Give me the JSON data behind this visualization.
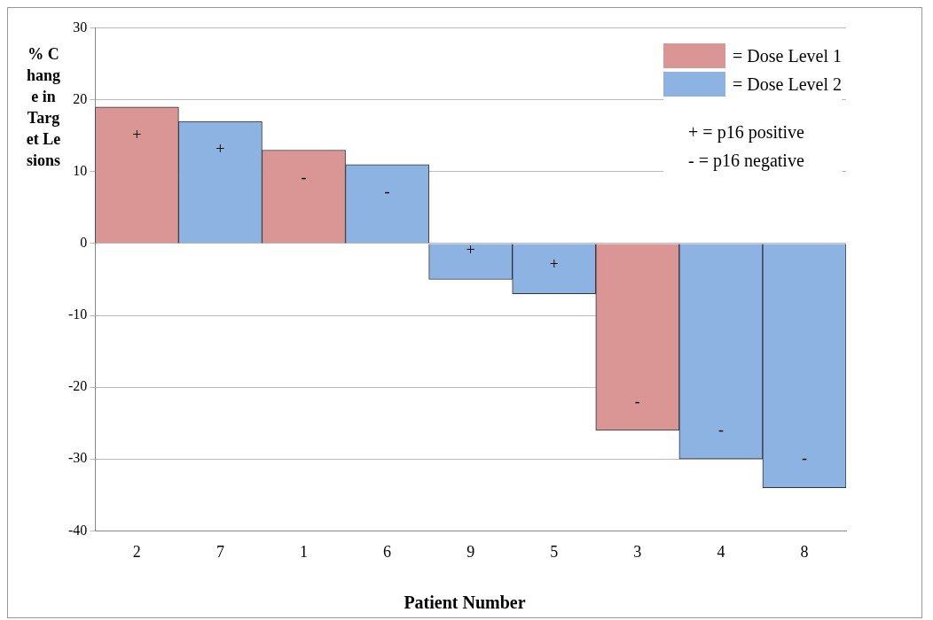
{
  "chart_data": {
    "type": "bar",
    "xlabel": "Patient Number",
    "ylabel": "% Change in Target Lesions",
    "categories": [
      "2",
      "7",
      "1",
      "6",
      "9",
      "5",
      "3",
      "4",
      "8"
    ],
    "series": [
      {
        "name": "= Dose Level 1",
        "color": "#d99694",
        "values": [
          19,
          null,
          13,
          null,
          null,
          null,
          -26,
          null,
          null
        ],
        "value_labels": [
          "+",
          null,
          "-",
          null,
          null,
          null,
          "-",
          null,
          null
        ]
      },
      {
        "name": "= Dose Level 2",
        "color": "#8db3e2",
        "values": [
          null,
          17,
          null,
          11,
          -5,
          -7,
          null,
          -30,
          -34
        ],
        "value_labels": [
          null,
          "+",
          null,
          "-",
          "+",
          "+",
          null,
          "-",
          "-"
        ]
      }
    ],
    "ylim": [
      -40,
      30
    ],
    "yticks": [
      -40,
      -30,
      -20,
      -10,
      0,
      10,
      20,
      30
    ],
    "grid": "y",
    "legend": "top right",
    "annotations": [
      "+ = p16 positive",
      "- = p16 negative"
    ]
  }
}
